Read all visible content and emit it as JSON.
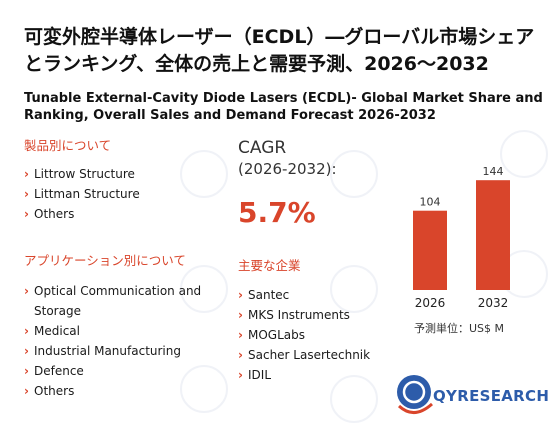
{
  "title_jp": "可変外腔半導体レーザー（ECDL）―グローバル市場シェアとランキング、全体の売上と需要予測、2026～2032",
  "title_en": "Tunable External-Cavity Diode Lasers (ECDL)- Global Market Share and Ranking, Overall Sales and Demand Forecast 2026-2032",
  "product_section": {
    "heading": "製品別について",
    "items": [
      "Littrow Structure",
      "Littman Structure",
      "Others"
    ]
  },
  "application_section": {
    "heading": "アプリケーション別について",
    "items": [
      "Optical Communication and Storage",
      "Medical",
      "Industrial Manufacturing",
      "Defence",
      "Others"
    ]
  },
  "cagr": {
    "label": "CAGR",
    "range": "(2026-2032):",
    "value": "5.7%"
  },
  "companies_section": {
    "heading": "主要な企業",
    "items": [
      "Santec",
      "MKS Instruments",
      "MOGLabs",
      "Sacher Lasertechnik",
      "IDIL"
    ]
  },
  "chart_data": {
    "type": "bar",
    "categories": [
      "2026",
      "2032"
    ],
    "values": [
      104,
      144
    ],
    "title": "",
    "xlabel": "",
    "ylabel": "",
    "unit_label": "予測単位：US$ M",
    "bar_color": "#d9452b"
  },
  "logo": {
    "prefix": "QY",
    "suffix": "RESEARCH",
    "color": "#2d5caa"
  }
}
